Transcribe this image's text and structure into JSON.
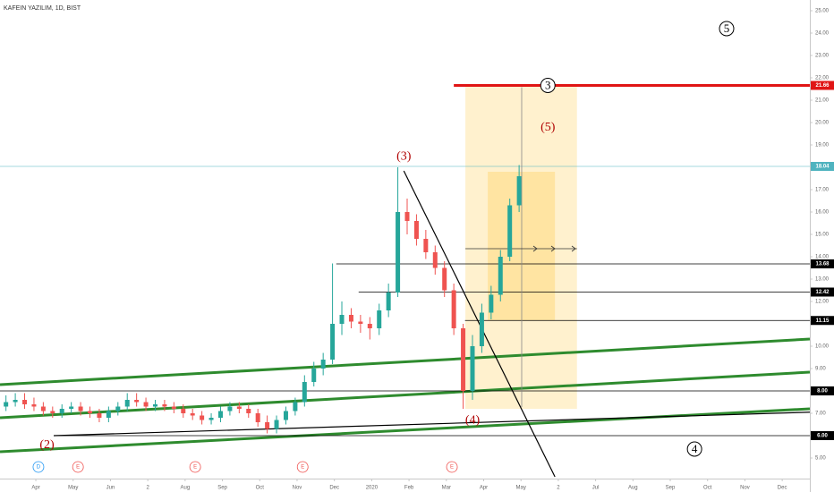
{
  "chart_data": {
    "type": "candlestick",
    "title": "KAFEIN YAZILIM, 1D, BIST",
    "xlim": [
      0.04,
      21.74
    ],
    "ylim": [
      3.88,
      25.48
    ],
    "xticks": [
      {
        "value": 1,
        "label": "Apr"
      },
      {
        "value": 2,
        "label": "May"
      },
      {
        "value": 3,
        "label": "Jun"
      },
      {
        "value": 4,
        "label": "2"
      },
      {
        "value": 5,
        "label": "Aug"
      },
      {
        "value": 6,
        "label": "Sep"
      },
      {
        "value": 7,
        "label": "Oct"
      },
      {
        "value": 8,
        "label": "Nov"
      },
      {
        "value": 9,
        "label": "Dec"
      },
      {
        "value": 10,
        "label": "2020"
      },
      {
        "value": 11,
        "label": "Feb"
      },
      {
        "value": 12,
        "label": "Mar"
      },
      {
        "value": 13,
        "label": "Apr"
      },
      {
        "value": 14,
        "label": "May"
      },
      {
        "value": 15,
        "label": "2"
      },
      {
        "value": 16,
        "label": "Jul"
      },
      {
        "value": 17,
        "label": "Aug"
      },
      {
        "value": 18,
        "label": "Sep"
      },
      {
        "value": 19,
        "label": "Oct"
      },
      {
        "value": 20,
        "label": "Nov"
      },
      {
        "value": 21,
        "label": "Dec"
      }
    ],
    "yticks": [
      {
        "value": 25,
        "label": "25.00"
      },
      {
        "value": 24,
        "label": "24.00"
      },
      {
        "value": 23,
        "label": "23.00"
      },
      {
        "value": 22,
        "label": "22.00"
      },
      {
        "value": 21,
        "label": "21.00"
      },
      {
        "value": 20,
        "label": "20.00"
      },
      {
        "value": 19,
        "label": "19.00"
      },
      {
        "value": 17,
        "label": "17.00"
      },
      {
        "value": 16,
        "label": "16.00"
      },
      {
        "value": 15,
        "label": "15.00"
      },
      {
        "value": 14,
        "label": "14.00"
      },
      {
        "value": 13,
        "label": "13.00"
      },
      {
        "value": 12,
        "label": "12.00"
      },
      {
        "value": 10,
        "label": "10.00"
      },
      {
        "value": 9,
        "label": "9.00"
      },
      {
        "value": 7,
        "label": "7.00"
      },
      {
        "value": 5,
        "label": "5.00"
      }
    ],
    "up_color": "#26a69a",
    "down_color": "#ef5350",
    "x": [
      0.2,
      0.45,
      0.7,
      0.95,
      1.2,
      1.45,
      1.7,
      1.95,
      2.2,
      2.45,
      2.7,
      2.95,
      3.2,
      3.45,
      3.7,
      3.95,
      4.2,
      4.45,
      4.7,
      4.95,
      5.2,
      5.45,
      5.7,
      5.95,
      6.2,
      6.45,
      6.7,
      6.95,
      7.2,
      7.45,
      7.7,
      7.95,
      8.2,
      8.45,
      8.7,
      8.95,
      9.2,
      9.45,
      9.7,
      9.95,
      10.2,
      10.45,
      10.7,
      10.95,
      11.2,
      11.45,
      11.7,
      11.95,
      12.2,
      12.45,
      12.7,
      12.95,
      13.2,
      13.45,
      13.7,
      13.95
    ],
    "open": [
      7.3,
      7.5,
      7.6,
      7.4,
      7.3,
      7.1,
      7.0,
      7.2,
      7.3,
      7.1,
      7.0,
      6.8,
      7.1,
      7.3,
      7.6,
      7.5,
      7.3,
      7.4,
      7.3,
      7.2,
      7.0,
      6.9,
      6.7,
      6.8,
      7.1,
      7.3,
      7.2,
      7.0,
      6.6,
      6.3,
      6.7,
      7.1,
      7.5,
      8.4,
      9.0,
      9.4,
      11.0,
      11.4,
      11.1,
      11.0,
      10.8,
      11.6,
      12.4,
      16.0,
      15.6,
      14.8,
      14.2,
      13.5,
      12.5,
      10.8,
      8.0,
      10.0,
      11.5,
      12.3,
      14.0,
      16.3
    ],
    "high": [
      7.8,
      7.9,
      7.9,
      7.7,
      7.5,
      7.3,
      7.4,
      7.5,
      7.5,
      7.3,
      7.2,
      7.3,
      7.5,
      7.9,
      7.9,
      7.7,
      7.6,
      7.6,
      7.5,
      7.4,
      7.2,
      7.1,
      7.0,
      7.3,
      7.5,
      7.5,
      7.4,
      7.2,
      6.9,
      6.9,
      7.3,
      7.7,
      8.7,
      9.3,
      9.7,
      13.7,
      12.0,
      11.7,
      11.4,
      11.3,
      11.9,
      12.8,
      18.0,
      16.6,
      15.9,
      15.2,
      14.5,
      13.8,
      12.8,
      11.0,
      10.5,
      11.9,
      12.7,
      14.3,
      16.6,
      18.1
    ],
    "low": [
      7.1,
      7.3,
      7.2,
      7.1,
      6.9,
      6.8,
      6.8,
      7.0,
      6.9,
      6.8,
      6.6,
      6.6,
      6.9,
      7.1,
      7.3,
      7.1,
      7.1,
      7.1,
      7.0,
      6.8,
      6.7,
      6.5,
      6.5,
      6.6,
      6.9,
      7.0,
      6.8,
      6.4,
      6.1,
      6.1,
      6.5,
      6.9,
      7.3,
      8.2,
      8.7,
      9.2,
      10.5,
      10.8,
      10.6,
      10.3,
      10.5,
      11.3,
      12.2,
      15.0,
      14.5,
      13.9,
      13.2,
      12.2,
      10.5,
      7.2,
      7.6,
      9.7,
      11.2,
      12.0,
      13.8,
      16.0
    ],
    "close": [
      7.5,
      7.6,
      7.4,
      7.3,
      7.1,
      7.0,
      7.2,
      7.3,
      7.1,
      7.0,
      6.8,
      7.1,
      7.3,
      7.6,
      7.5,
      7.3,
      7.4,
      7.3,
      7.2,
      7.0,
      6.9,
      6.7,
      6.8,
      7.1,
      7.3,
      7.2,
      7.0,
      6.6,
      6.3,
      6.7,
      7.1,
      7.5,
      8.4,
      9.0,
      9.4,
      11.0,
      11.4,
      11.1,
      11.0,
      10.8,
      11.6,
      12.4,
      16.0,
      15.6,
      14.8,
      14.2,
      13.5,
      12.5,
      10.8,
      8.0,
      10.0,
      11.5,
      12.3,
      14.0,
      16.3,
      17.6
    ],
    "levels": [
      {
        "value": 21.66,
        "label": "21.66",
        "color": "#e01515",
        "start": 12.2,
        "width": 3
      },
      {
        "value": 18.04,
        "label": "18.04",
        "color": "#4fb3bf",
        "start": 0.04,
        "width": 0.6
      },
      {
        "value": 13.68,
        "label": "13.68",
        "color": "#000000",
        "start": 9.05,
        "width": 0.7
      },
      {
        "value": 12.42,
        "label": "12.42",
        "color": "#000000",
        "start": 9.65,
        "width": 0.7
      },
      {
        "value": 11.15,
        "label": "11.15",
        "color": "#000000",
        "start": 12.5,
        "width": 0.7
      },
      {
        "value": 8.0,
        "label": "8.00",
        "color": "#000000",
        "start": 0.04,
        "width": 0.7
      },
      {
        "value": 6.0,
        "label": "6.00",
        "color": "#000000",
        "start": 1.48,
        "width": 0.7
      }
    ],
    "trendlines": [
      {
        "color": "#2e8b2e",
        "width": 3,
        "x": [
          0.04,
          21.74
        ],
        "y": [
          8.28,
          10.32
        ]
      },
      {
        "color": "#2e8b2e",
        "width": 3,
        "x": [
          0.04,
          21.74
        ],
        "y": [
          6.8,
          8.84
        ]
      },
      {
        "color": "#2e8b2e",
        "width": 3,
        "x": [
          0.04,
          21.74
        ],
        "y": [
          5.28,
          7.2
        ]
      },
      {
        "color": "#000000",
        "width": 1.2,
        "x": [
          1.48,
          21.74
        ],
        "y": [
          6.0,
          7.05
        ]
      },
      {
        "color": "#000000",
        "width": 1.2,
        "x": [
          10.86,
          14.91
        ],
        "y": [
          17.84,
          4.16
        ]
      }
    ],
    "boxes": [
      {
        "x": [
          12.51,
          15.5
        ],
        "y": [
          7.2,
          21.66
        ],
        "color": "rgba(255,204,80,0.28)"
      },
      {
        "x": [
          13.11,
          14.91
        ],
        "y": [
          11.15,
          17.8
        ],
        "color": "rgba(255,204,80,0.35)"
      }
    ],
    "annotations": [
      {
        "text": "(3)",
        "x": 10.86,
        "y": 18.5,
        "color": "#b00000",
        "circled": false
      },
      {
        "text": "(4)",
        "x": 12.7,
        "y": 6.7,
        "color": "#b00000",
        "circled": false
      },
      {
        "text": "(5)",
        "x": 14.72,
        "y": 19.8,
        "color": "#b00000",
        "circled": false
      },
      {
        "text": "(2)",
        "x": 1.3,
        "y": 5.6,
        "color": "#b00000",
        "circled": false
      },
      {
        "text": "3",
        "x": 14.72,
        "y": 21.66,
        "color": "#000000",
        "circled": true
      },
      {
        "text": "5",
        "x": 19.51,
        "y": 24.2,
        "color": "#000000",
        "circled": true
      },
      {
        "text": "4",
        "x": 18.65,
        "y": 5.4,
        "color": "#000000",
        "circled": true
      }
    ],
    "events": [
      {
        "label": "D",
        "x": 1.07,
        "color": "#2196f3"
      },
      {
        "label": "E",
        "x": 2.13,
        "color": "#ef5350"
      },
      {
        "label": "E",
        "x": 5.27,
        "color": "#ef5350"
      },
      {
        "label": "E",
        "x": 8.15,
        "color": "#ef5350"
      },
      {
        "label": "E",
        "x": 12.15,
        "color": "#ef5350"
      }
    ]
  }
}
